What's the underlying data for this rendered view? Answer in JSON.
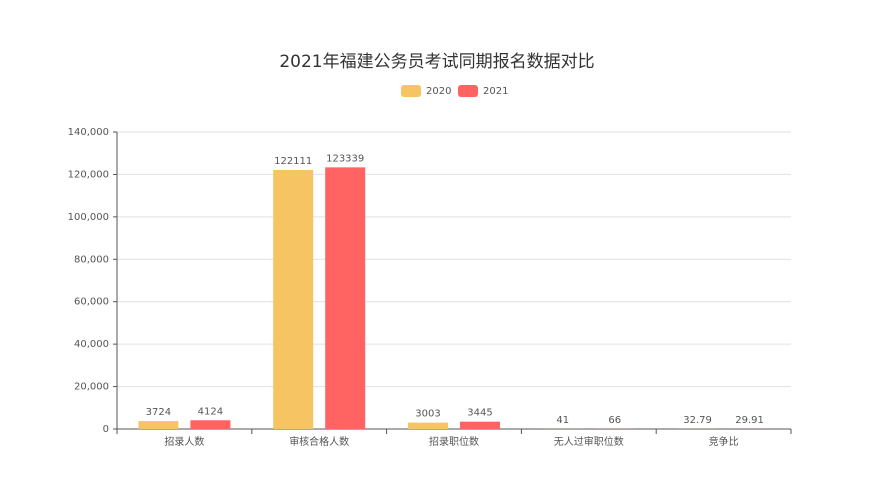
{
  "chart_data": {
    "type": "bar",
    "title": "2021年福建公务员考试同期报名数据对比",
    "categories": [
      "招录人数",
      "审核合格人数",
      "招录职位数",
      "无人过审职位数",
      "竞争比"
    ],
    "series": [
      {
        "name": "2020",
        "color": "#f6c462",
        "values": [
          3724,
          122111,
          3003,
          41,
          32.79
        ]
      },
      {
        "name": "2021",
        "color": "#ff6462",
        "values": [
          4124,
          123339,
          3445,
          66,
          29.91
        ]
      }
    ],
    "ylim": [
      0,
      140000
    ],
    "yticks": [
      0,
      {
        "value": 20000,
        "label": "20,000"
      },
      {
        "value": 40000,
        "label": "40,000"
      },
      {
        "value": 60000,
        "label": "60,000"
      },
      {
        "value": 80000,
        "label": "80,000"
      },
      {
        "value": 100000,
        "label": "100,000"
      },
      {
        "value": 120000,
        "label": "120,000"
      },
      {
        "value": 140000,
        "label": "140,000"
      }
    ],
    "grid": true,
    "legend": "top"
  }
}
